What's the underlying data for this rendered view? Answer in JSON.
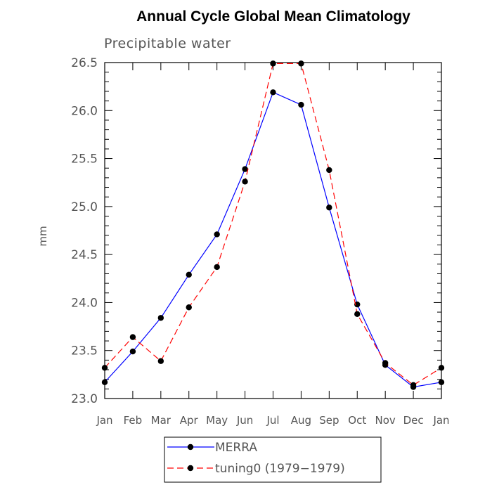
{
  "chart_data": {
    "type": "line",
    "title": "Annual Cycle Global Mean Climatology",
    "subtitle": "Precipitable water",
    "ylabel": "mm",
    "xlabel": "",
    "categories": [
      "Jan",
      "Feb",
      "Mar",
      "Apr",
      "May",
      "Jun",
      "Jul",
      "Aug",
      "Sep",
      "Oct",
      "Nov",
      "Dec",
      "Jan"
    ],
    "ylim": [
      23.0,
      26.5
    ],
    "yticks": [
      "23.0",
      "23.5",
      "24.0",
      "24.5",
      "25.0",
      "25.5",
      "26.0",
      "26.5"
    ],
    "series": [
      {
        "name": "MERRA",
        "color": "#0000ff",
        "dash": "solid",
        "values": [
          23.17,
          23.49,
          23.84,
          24.29,
          24.71,
          25.39,
          26.19,
          26.06,
          24.99,
          23.98,
          23.35,
          23.12,
          23.17
        ]
      },
      {
        "name": "tuning0 (1979−1979)",
        "color": "#ff0000",
        "dash": "dashed",
        "values": [
          23.32,
          23.64,
          23.39,
          23.95,
          24.37,
          25.26,
          26.49,
          26.49,
          25.38,
          23.88,
          23.37,
          23.14,
          23.32
        ]
      }
    ],
    "legend_position": "bottom"
  }
}
